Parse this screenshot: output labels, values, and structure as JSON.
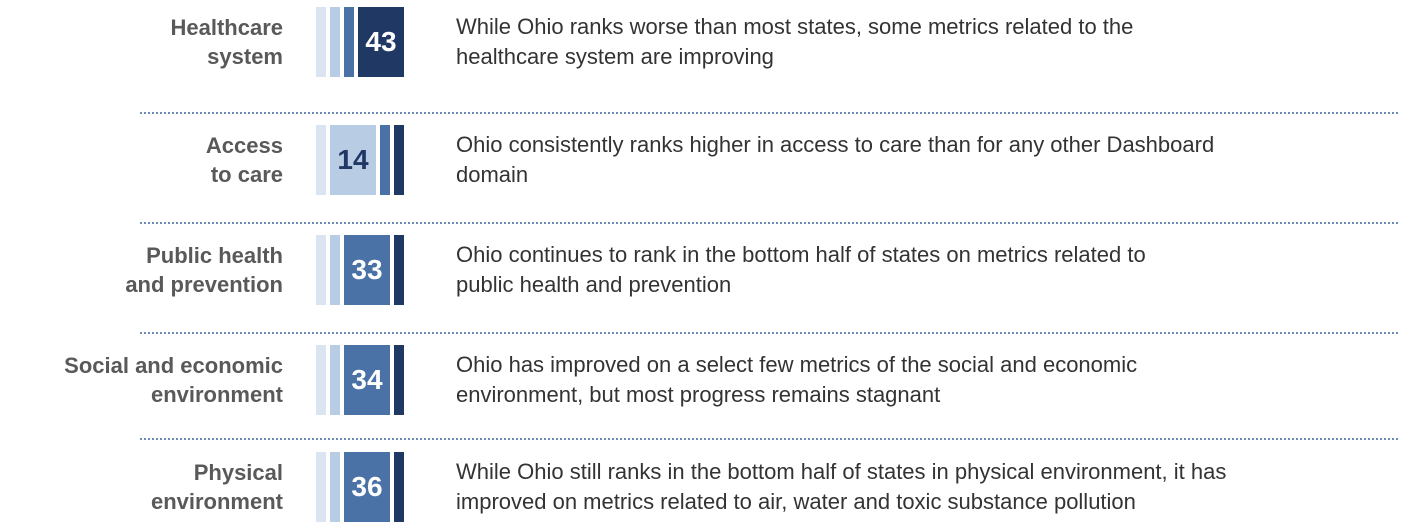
{
  "rows": [
    {
      "label": [
        "Healthcare",
        "system"
      ],
      "rank": 43,
      "description": [
        "While Ohio ranks worse than most states, some metrics related to the",
        "healthcare system are improving"
      ]
    },
    {
      "label": [
        "Access",
        "to care"
      ],
      "rank": 14,
      "description": [
        "Ohio consistently ranks higher in access to care than for any other Dashboard",
        "domain"
      ]
    },
    {
      "label": [
        "Public health",
        "and prevention"
      ],
      "rank": 33,
      "description": [
        "Ohio continues to rank in the bottom half of states on metrics related to",
        "public health and prevention"
      ]
    },
    {
      "label": [
        "Social and economic",
        "environment"
      ],
      "rank": 34,
      "description": [
        "Ohio has improved on a select few metrics of the social and economic",
        "environment, but most progress remains stagnant"
      ]
    },
    {
      "label": [
        "Physical",
        "environment"
      ],
      "rank": 36,
      "description": [
        "While Ohio still ranks in the bottom half of states in physical environment, it has",
        "improved on metrics related to air, water and toxic substance pollution"
      ]
    }
  ]
}
